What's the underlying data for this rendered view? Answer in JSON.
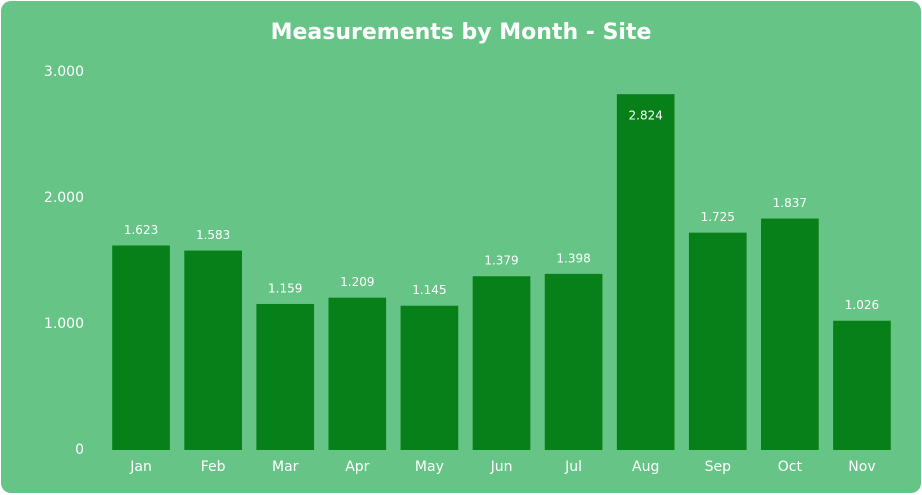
{
  "chart_data": {
    "type": "bar",
    "title": "Measurements by Month - Site",
    "categories": [
      "Jan",
      "Feb",
      "Mar",
      "Apr",
      "May",
      "Jun",
      "Jul",
      "Aug",
      "Sep",
      "Oct",
      "Nov"
    ],
    "values": [
      1623,
      1583,
      1159,
      1209,
      1145,
      1379,
      1398,
      2824,
      1725,
      1837,
      1026
    ],
    "value_labels": [
      "1.623",
      "1.583",
      "1.159",
      "1.209",
      "1.145",
      "1.379",
      "1.398",
      "2.824",
      "1.725",
      "1.837",
      "1.026"
    ],
    "color": "#07801a",
    "ylim": [
      0,
      3000
    ],
    "yticks": [
      0,
      {
        "value": 1000,
        "label": "1.000"
      },
      {
        "value": 2000,
        "label": "2.000"
      },
      {
        "value": 3000,
        "label": "3.000"
      }
    ],
    "grid": false
  }
}
